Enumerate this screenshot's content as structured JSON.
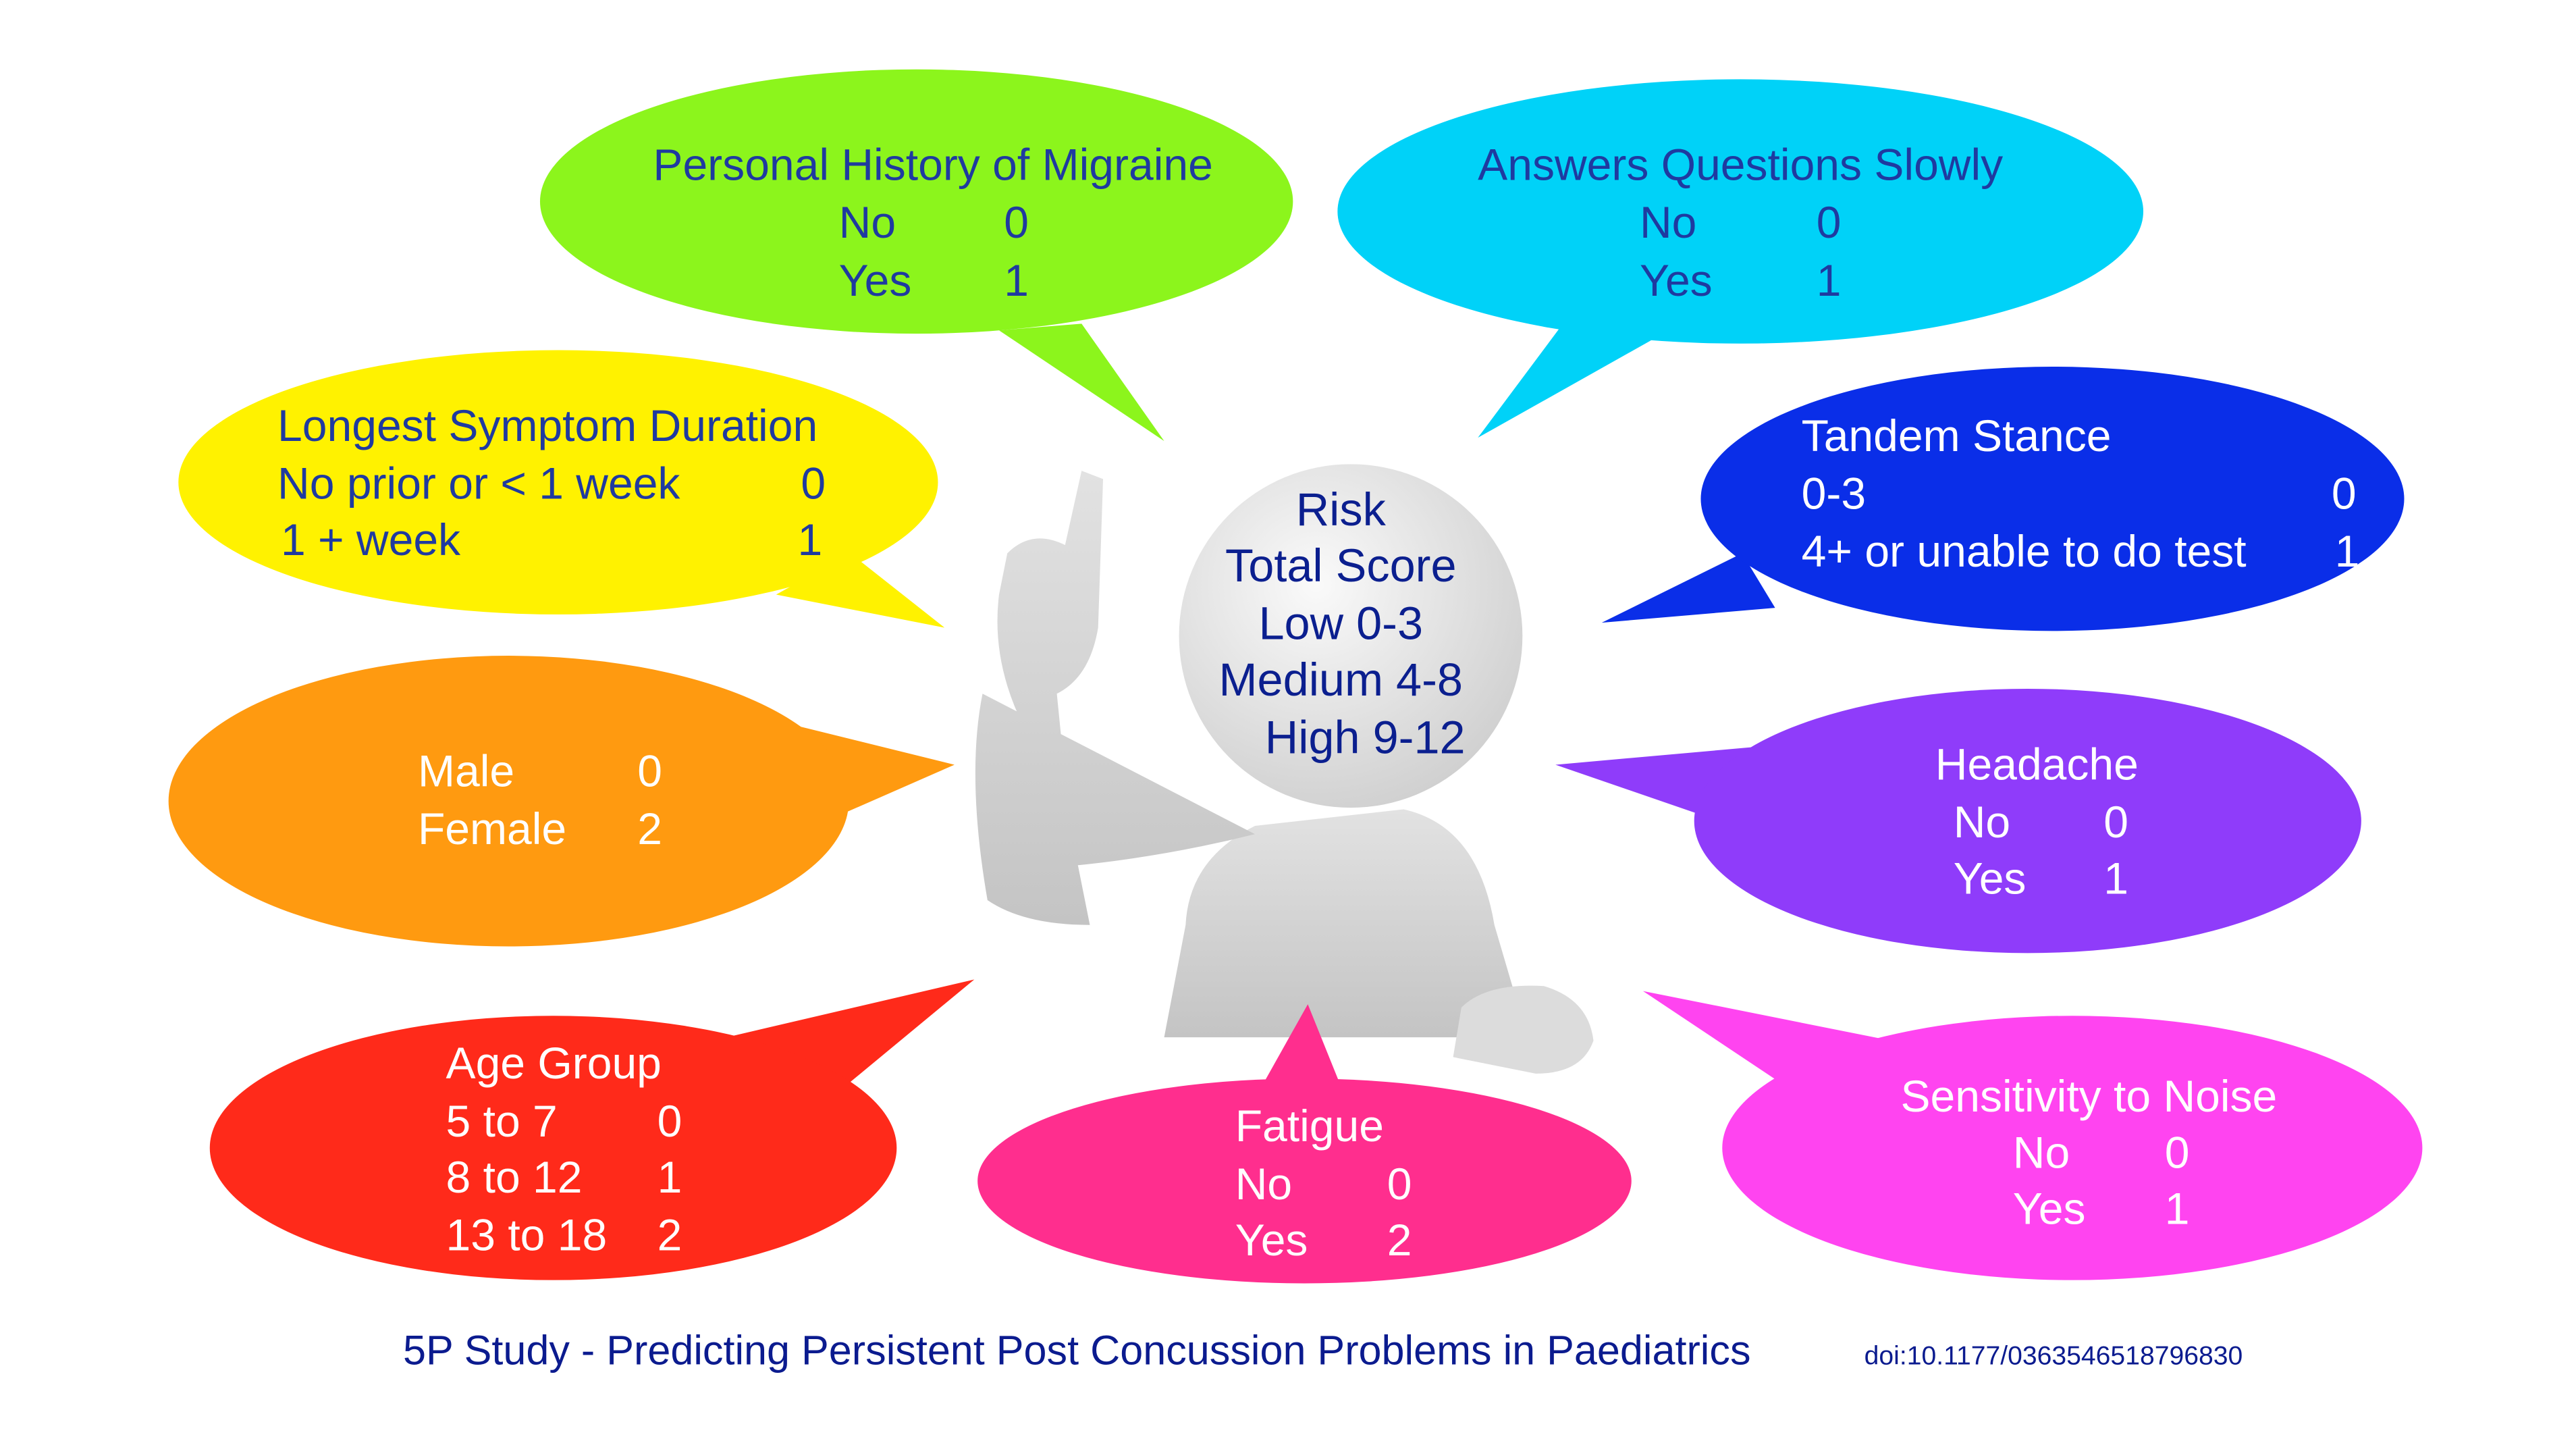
{
  "center": {
    "lines": [
      "Risk",
      "Total Score",
      "Low 0-3",
      "Medium 4-8",
      "High 9-12"
    ]
  },
  "bubbles": {
    "migraine": {
      "color": "#8cf51c",
      "title": "Personal History of Migraine",
      "rows": [
        [
          "No",
          "0"
        ],
        [
          "Yes",
          "1"
        ]
      ]
    },
    "answers": {
      "color": "#00d2f8",
      "title": "Answers Questions Slowly",
      "rows": [
        [
          "No",
          "0"
        ],
        [
          "Yes",
          "1"
        ]
      ]
    },
    "symptom": {
      "color": "#fff200",
      "title": "Longest Symptom Duration",
      "rows": [
        [
          "No prior or < 1 week",
          "0"
        ],
        [
          " 1 + week",
          "1"
        ]
      ]
    },
    "tandem": {
      "color": "#0a2ee8",
      "title": "Tandem Stance",
      "rows": [
        [
          "0-3",
          "0"
        ],
        [
          "4+ or unable to do test",
          "1"
        ]
      ]
    },
    "sex": {
      "color": "#ff9a10",
      "rows": [
        [
          "Male",
          "0"
        ],
        [
          "Female",
          "2"
        ]
      ]
    },
    "headache": {
      "color": "#8f3cfa",
      "title": "Headache",
      "rows": [
        [
          "No",
          "0"
        ],
        [
          "Yes",
          "1"
        ]
      ]
    },
    "age": {
      "color": "#ff2a1a",
      "title": "Age Group",
      "rows": [
        [
          "5 to 7",
          "0"
        ],
        [
          "8 to 12",
          "1"
        ],
        [
          "13 to 18",
          "2"
        ]
      ]
    },
    "fatigue": {
      "color": "#ff2e8e",
      "title": "Fatigue",
      "rows": [
        [
          "No",
          "0"
        ],
        [
          "Yes",
          "2"
        ]
      ]
    },
    "noise": {
      "color": "#ff44f0",
      "title": "Sensitivity to Noise",
      "rows": [
        [
          "No",
          "0"
        ],
        [
          "Yes",
          "1"
        ]
      ]
    }
  },
  "footer": {
    "title": "5P Study - Predicting Persistent Post Concussion Problems  in Paediatrics",
    "doi": "doi:10.1177/0363546518796830"
  }
}
